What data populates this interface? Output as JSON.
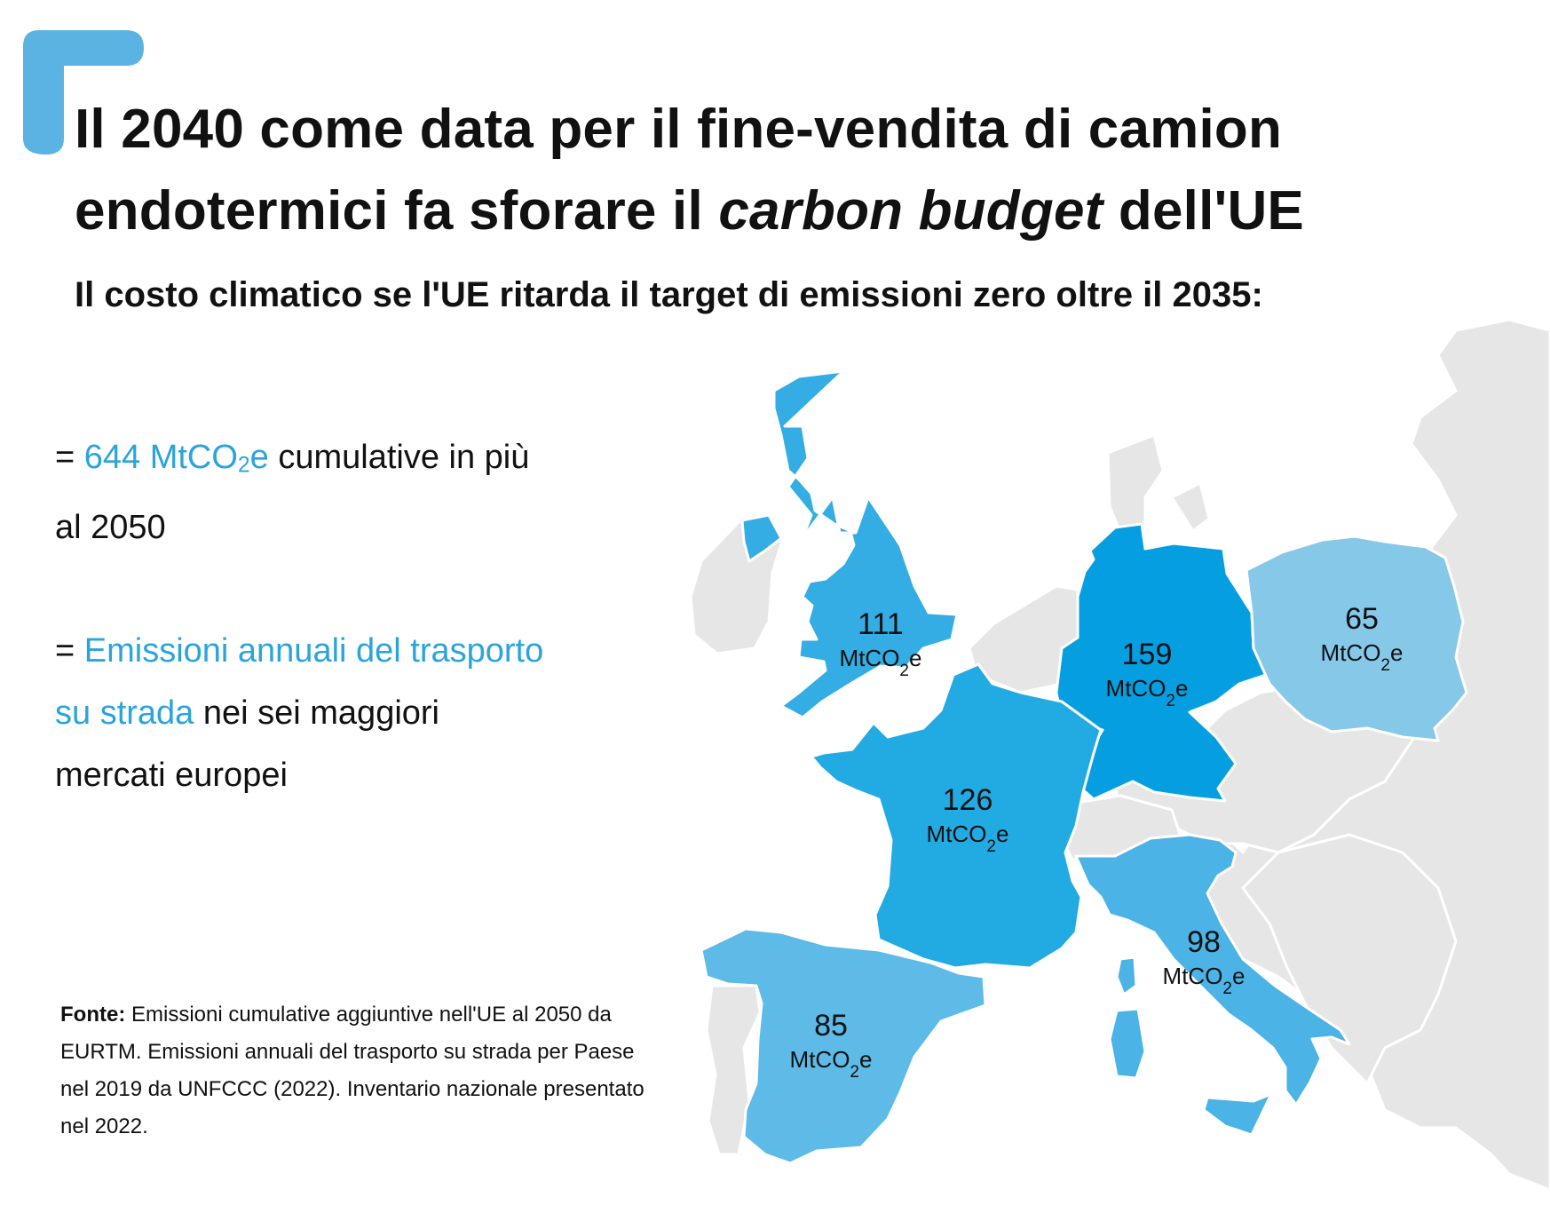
{
  "title": {
    "line1": "Il 2040 come data per il fine-vendita di camion",
    "line2_start": "endotermici fa sforare il ",
    "line2_italic": "carbon budget",
    "line2_end": " dell'UE"
  },
  "subtitle": "Il costo climatico se l'UE ritarda il target di emissioni zero oltre il 2035:",
  "stat1": {
    "prefix": "= ",
    "highlight_main": "644 MtCO",
    "highlight_sub": "2",
    "highlight_end": "e",
    "rest": " cumulative in più",
    "line2": "al 2050"
  },
  "stat2": {
    "prefix": "= ",
    "highlight_a": "Emissioni annuali del trasporto",
    "highlight_b": "su strada",
    "rest_b": " nei sei maggiori",
    "line3": "mercati europei"
  },
  "source": {
    "label": "Fonte:",
    "text": " Emissioni cumulative aggiuntive nell'UE al 2050 da EURTM. Emissioni annuali del trasporto su strada per Paese nel 2019 da UNFCCC (2022). Inventario nazionale presentato nel 2022."
  },
  "unit": {
    "main": "MtCO",
    "sub": "2",
    "end": "e"
  },
  "colors": {
    "accent": "#2ba4dc",
    "bracket": "#5ab3e2",
    "other_land": "#e6e6e6",
    "border": "#ffffff"
  },
  "chart_data": {
    "type": "choropleth",
    "unit": "MtCO2e",
    "regions": [
      {
        "name": "Germany",
        "value": 159,
        "color": "#059fe1"
      },
      {
        "name": "France",
        "value": 126,
        "color": "#22aae3"
      },
      {
        "name": "United Kingdom",
        "value": 111,
        "color": "#33ade3"
      },
      {
        "name": "Italy",
        "value": 98,
        "color": "#4bb3e5"
      },
      {
        "name": "Spain",
        "value": 85,
        "color": "#5ebae6"
      },
      {
        "name": "Poland",
        "value": 65,
        "color": "#86c8e8"
      }
    ]
  }
}
